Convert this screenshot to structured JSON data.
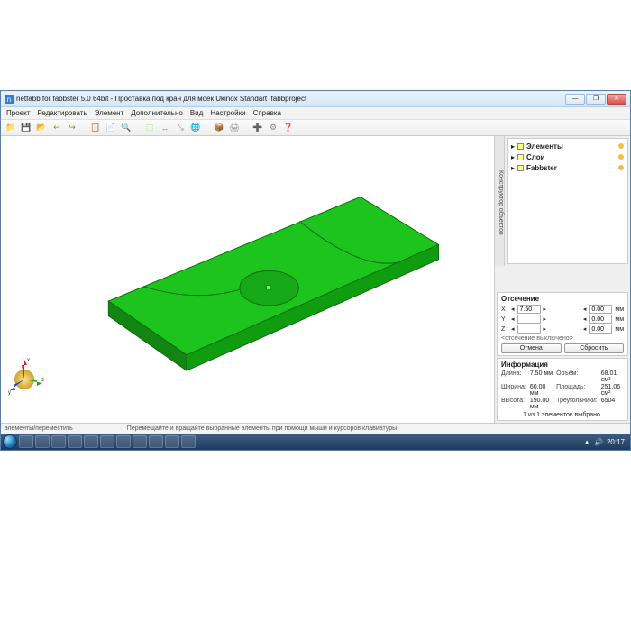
{
  "window": {
    "title": "netfabb for fabbster 5.0 64bit - Проставка под кран для моек Ukinox Standart .fabbproject",
    "minimize": "—",
    "maximize": "❐",
    "close": "✕"
  },
  "menu": {
    "items": [
      "Проект",
      "Редактировать",
      "Элемент",
      "Дополнительно",
      "Вид",
      "Настройки",
      "Справка"
    ]
  },
  "toolbar": {
    "icons": [
      "📁",
      "💾",
      "📂",
      "↩",
      "↪",
      "📋",
      "📄",
      "🔍",
      "⬚",
      "↔",
      "⤡",
      "🌐",
      "📦",
      "🖨",
      "➕",
      "⚙",
      "❓"
    ],
    "colors": [
      "#e8a23a",
      "#e8a23a",
      "#e8a23a",
      "#6a9e3a",
      "#6a9e3a",
      "#888",
      "#888",
      "#5fa",
      "#7c5",
      "#888",
      "#888",
      "#d44",
      "#46a",
      "#888",
      "#1a1",
      "#888",
      "#36c"
    ]
  },
  "tree": {
    "tab": "Конструктор объектов",
    "items": [
      {
        "label": "Элементы",
        "bold": true
      },
      {
        "label": "Слои",
        "bold": true
      },
      {
        "label": "Fabbster",
        "bold": true
      }
    ]
  },
  "clipping": {
    "title": "Отсечение",
    "rows": [
      {
        "axis": "X",
        "lo": "7.50",
        "hi": "0.00",
        "unit": "мм"
      },
      {
        "axis": "Y",
        "lo": "",
        "hi": "0.00",
        "unit": "мм"
      },
      {
        "axis": "Z",
        "lo": "",
        "hi": "0.00",
        "unit": "мм"
      }
    ],
    "note": "<отсечение выключено>",
    "btn_otmena": "Отмена",
    "btn_sbrosit": "Сбросить"
  },
  "info": {
    "title": "Информация",
    "rows": [
      {
        "k1": "Длина:",
        "v1": "7.50 мм",
        "k2": "Объём:",
        "v2": "68.01 см³"
      },
      {
        "k1": "Ширина:",
        "v1": "60.00 мм",
        "k2": "Площадь:",
        "v2": "251.06 см²"
      },
      {
        "k1": "Высота:",
        "v1": "190.00 мм",
        "k2": "Треугольники:",
        "v2": "6504"
      }
    ],
    "footer": "1 из 1 элементов выбрано."
  },
  "status": {
    "left": "элементы/переместить",
    "hint": "Перемещайте и вращайте выбранные элементы при помощи мыши и курсоров клавиатуры"
  },
  "colors": {
    "model_fill": "#1ec41e",
    "model_dark": "#0f9c0f",
    "model_edge": "#0a6b0a",
    "bg": "#ffffff"
  },
  "axis": {
    "x": "x",
    "y": "y",
    "z": "z"
  },
  "taskbar": {
    "count": 11,
    "clock": "20:17"
  }
}
